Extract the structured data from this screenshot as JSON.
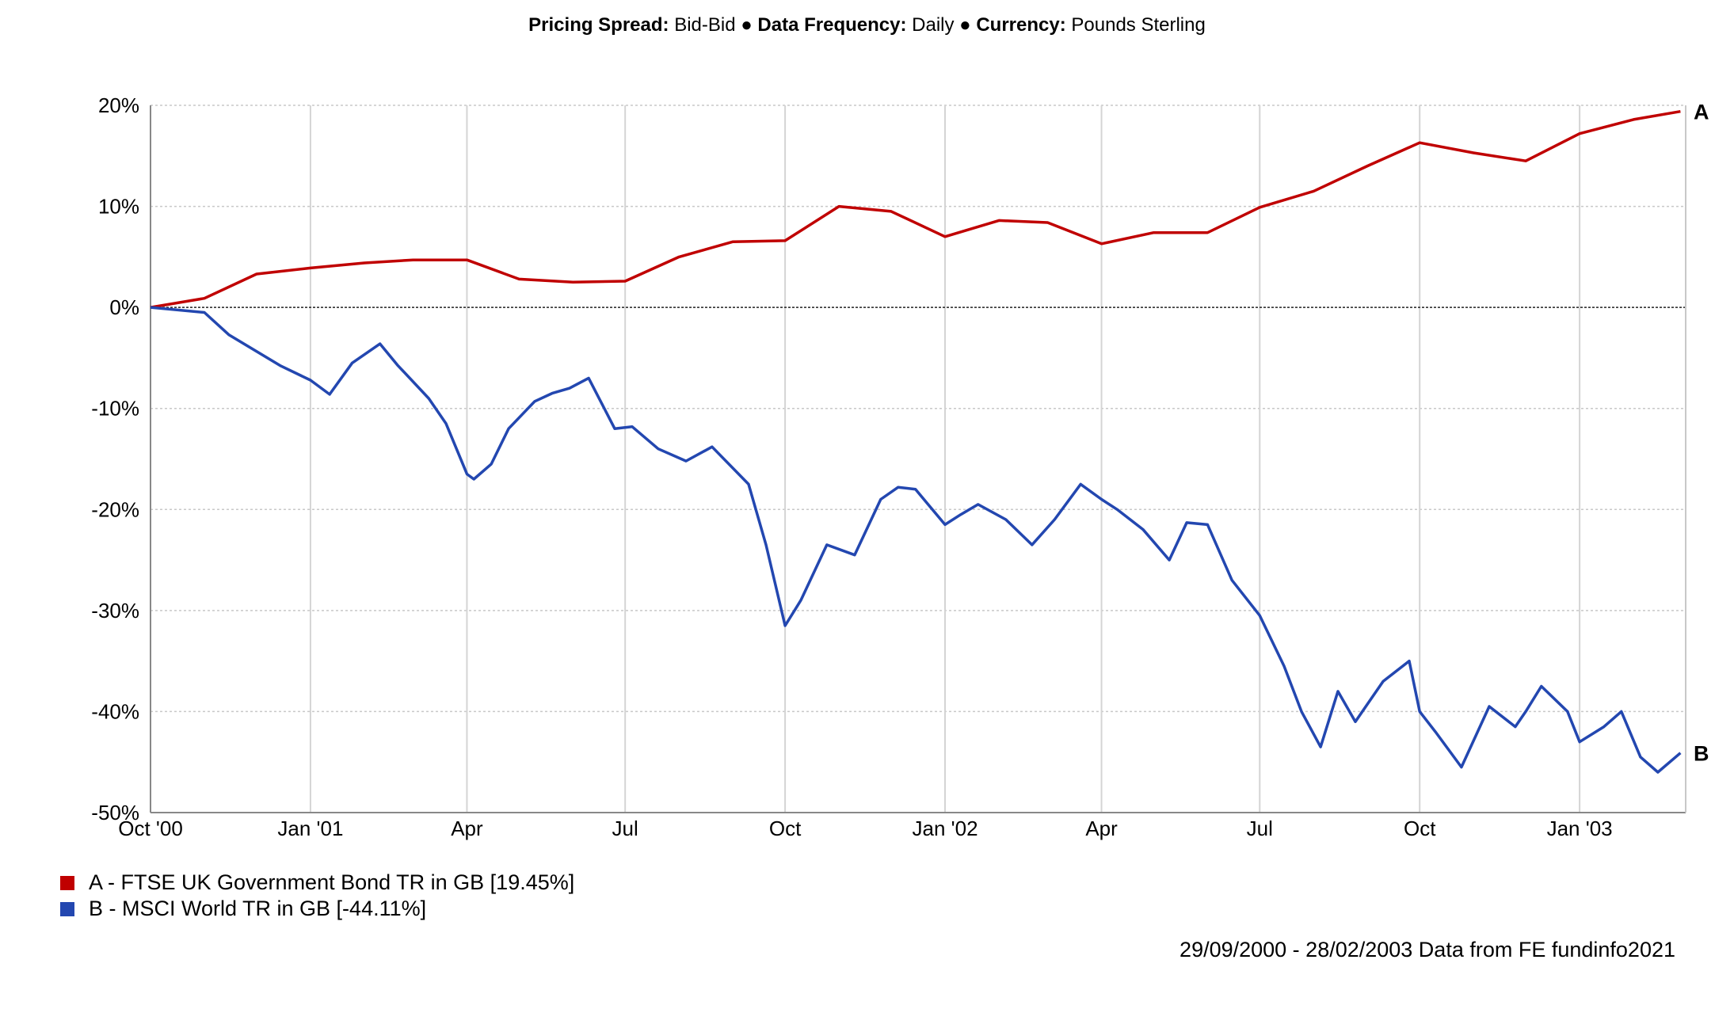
{
  "header": {
    "pricing_label": "Pricing Spread:",
    "pricing_value": "Bid-Bid",
    "sep1": "●",
    "frequency_label": "Data Frequency:",
    "frequency_value": "Daily",
    "sep2": "●",
    "currency_label": "Currency:",
    "currency_value": "Pounds Sterling"
  },
  "legend": {
    "a": "A - FTSE UK Government Bond TR in GB [19.45%]",
    "b": "B - MSCI World TR in GB [-44.11%]"
  },
  "footer": "29/09/2000 - 28/02/2003 Data from FE fundinfo2021",
  "chart_data": {
    "type": "line",
    "title": "",
    "xlabel": "",
    "ylabel": "",
    "ylim": [
      -50,
      20
    ],
    "xlim": [
      "2000-10-01",
      "2003-03-03"
    ],
    "grid": true,
    "yticks": [
      20,
      10,
      0,
      -10,
      -20,
      -30,
      -40,
      -50
    ],
    "ytick_labels": [
      "20%",
      "10%",
      "0%",
      "-10%",
      "-20%",
      "-30%",
      "-40%",
      "-50%"
    ],
    "xticks": [
      "2000-10-01",
      "2001-01-01",
      "2001-04-01",
      "2001-07-01",
      "2001-10-01",
      "2002-01-01",
      "2002-04-01",
      "2002-07-01",
      "2002-10-01",
      "2003-01-01"
    ],
    "xtick_labels": [
      "Oct '00",
      "Jan '01",
      "Apr",
      "Jul",
      "Oct",
      "Jan '02",
      "Apr",
      "Jul",
      "Oct",
      "Jan '03"
    ],
    "series": [
      {
        "name": "A - FTSE UK Government Bond TR in GB [19.45%]",
        "end_label": "A",
        "color": "#c00000",
        "x": [
          "2000-10-01",
          "2000-11-01",
          "2000-12-01",
          "2001-01-01",
          "2001-02-01",
          "2001-03-01",
          "2001-04-01",
          "2001-05-01",
          "2001-06-01",
          "2001-07-01",
          "2001-08-01",
          "2001-09-01",
          "2001-10-01",
          "2001-11-01",
          "2001-12-01",
          "2002-01-01",
          "2002-02-01",
          "2002-03-01",
          "2002-04-01",
          "2002-05-01",
          "2002-06-01",
          "2002-07-01",
          "2002-08-01",
          "2002-09-01",
          "2002-10-01",
          "2002-11-01",
          "2002-12-01",
          "2003-01-01",
          "2003-02-01",
          "2003-02-28"
        ],
        "values": [
          0,
          0.9,
          3.3,
          3.9,
          4.4,
          4.7,
          4.7,
          2.8,
          2.5,
          2.6,
          5.0,
          6.5,
          6.6,
          10.0,
          9.5,
          7.0,
          8.6,
          8.4,
          6.3,
          7.4,
          7.4,
          9.9,
          11.5,
          14.0,
          16.3,
          15.3,
          14.5,
          17.2,
          18.6,
          19.4
        ]
      },
      {
        "name": "B - MSCI World TR in GB [-44.11%]",
        "end_label": "B",
        "color": "#2347b0",
        "x": [
          "2000-10-01",
          "2000-11-01",
          "2000-11-15",
          "2000-12-15",
          "2001-01-01",
          "2001-01-12",
          "2001-01-25",
          "2001-02-10",
          "2001-02-20",
          "2001-03-10",
          "2001-03-20",
          "2001-04-01",
          "2001-04-05",
          "2001-04-15",
          "2001-04-25",
          "2001-05-10",
          "2001-05-20",
          "2001-05-30",
          "2001-06-10",
          "2001-06-25",
          "2001-07-05",
          "2001-07-20",
          "2001-08-05",
          "2001-08-20",
          "2001-09-10",
          "2001-09-20",
          "2001-10-01",
          "2001-10-10",
          "2001-10-25",
          "2001-11-10",
          "2001-11-25",
          "2001-12-05",
          "2001-12-15",
          "2002-01-01",
          "2002-01-10",
          "2002-01-20",
          "2002-02-05",
          "2002-02-20",
          "2002-03-05",
          "2002-03-20",
          "2002-04-01",
          "2002-04-10",
          "2002-04-25",
          "2002-05-10",
          "2002-05-20",
          "2002-06-01",
          "2002-06-15",
          "2002-07-01",
          "2002-07-15",
          "2002-07-25",
          "2002-08-05",
          "2002-08-15",
          "2002-08-25",
          "2002-09-10",
          "2002-09-25",
          "2002-10-01",
          "2002-10-10",
          "2002-10-25",
          "2002-11-10",
          "2002-11-25",
          "2002-12-01",
          "2002-12-10",
          "2002-12-25",
          "2003-01-01",
          "2003-01-15",
          "2003-01-25",
          "2003-02-05",
          "2003-02-15",
          "2003-02-28"
        ],
        "values": [
          0,
          -0.5,
          -2.7,
          -5.8,
          -7.2,
          -8.6,
          -5.5,
          -3.6,
          -5.7,
          -9.0,
          -11.5,
          -16.5,
          -17.0,
          -15.5,
          -12.0,
          -9.3,
          -8.5,
          -8.0,
          -7.0,
          -12.0,
          -11.8,
          -14.0,
          -15.2,
          -13.8,
          -17.5,
          -23.5,
          -31.5,
          -29.0,
          -23.5,
          -24.5,
          -19.0,
          -17.8,
          -18.0,
          -21.5,
          -20.5,
          -19.5,
          -21.0,
          -23.5,
          -21.0,
          -17.5,
          -19.0,
          -20.0,
          -22.0,
          -25.0,
          -21.3,
          -21.5,
          -27.0,
          -30.5,
          -35.5,
          -40.0,
          -43.5,
          -38.0,
          -41.0,
          -37.0,
          -35.0,
          -40.0,
          -42.0,
          -45.5,
          -39.5,
          -41.5,
          -40.0,
          -37.5,
          -40.0,
          -43.0,
          -41.5,
          -40.0,
          -44.5,
          -46.0,
          -44.1
        ]
      }
    ]
  }
}
